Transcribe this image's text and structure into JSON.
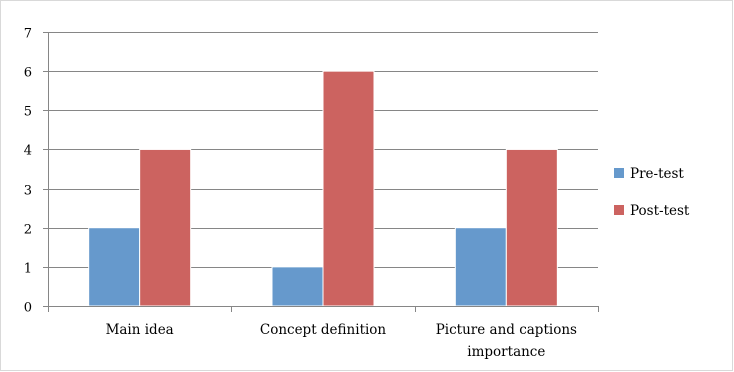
{
  "chart_data": {
    "type": "bar",
    "categories": [
      [
        "Main idea"
      ],
      [
        "Concept definition"
      ],
      [
        "Picture and captions",
        "importance"
      ]
    ],
    "series": [
      {
        "name": "Pre-test",
        "values": [
          2,
          1,
          2
        ],
        "color": "#6699cc"
      },
      {
        "name": "Post-test",
        "values": [
          4,
          6,
          4
        ],
        "color": "#cc6360"
      }
    ],
    "yticks": [
      0,
      1,
      2,
      3,
      4,
      5,
      6,
      7
    ],
    "ylim": [
      0,
      7
    ],
    "grid": true,
    "legend_position": "right",
    "title": "",
    "xlabel": "",
    "ylabel": ""
  }
}
